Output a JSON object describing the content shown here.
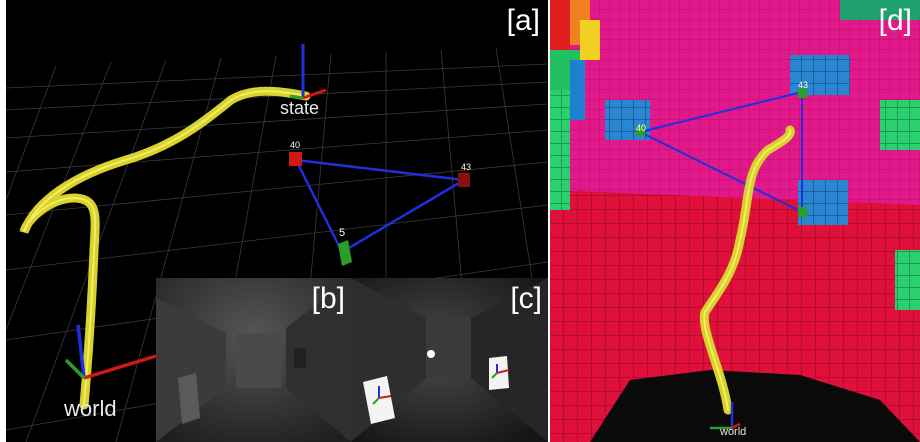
{
  "panels": {
    "a": {
      "label": "[a]",
      "frames": {
        "state": "state",
        "world": "world"
      },
      "tags": [
        "40",
        "43",
        "5"
      ]
    },
    "b": {
      "label": "[b]"
    },
    "c": {
      "label": "[c]"
    },
    "d": {
      "label": "[d]",
      "frames": {
        "world": "world"
      },
      "tags": [
        "40",
        "43"
      ]
    }
  },
  "colors": {
    "background": "#000000",
    "trajectory": "#d8d22a",
    "edge": "#1f2fe0",
    "tag_red": "#d01818",
    "tag_green": "#2aa02a",
    "voxel_magenta": "#d4117a",
    "voxel_red": "#e0103a",
    "voxel_blue": "#2a86d0"
  }
}
